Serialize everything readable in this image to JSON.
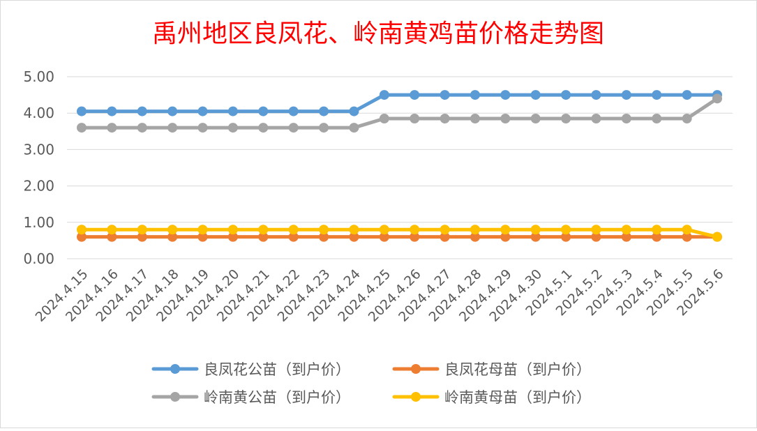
{
  "chart_data": {
    "type": "line",
    "title": "禹州地区良凤花、岭南黄鸡苗价格走势图",
    "categories": [
      "2024.4.15",
      "2024.4.16",
      "2024.4.17",
      "2024.4.18",
      "2024.4.19",
      "2024.4.20",
      "2024.4.21",
      "2024.4.22",
      "2024.4.23",
      "2024.4.24",
      "2024.4.25",
      "2024.4.26",
      "2024.4.27",
      "2024.4.28",
      "2024.4.29",
      "2024.4.30",
      "2024.5.1",
      "2024.5.2",
      "2024.5.3",
      "2024.5.4",
      "2024.5.5",
      "2024.5.6"
    ],
    "yticks": [
      "0.00",
      "1.00",
      "2.00",
      "3.00",
      "4.00",
      "5.00"
    ],
    "ylim": [
      0,
      5
    ],
    "grid": true,
    "legend_position": "bottom",
    "series": [
      {
        "name": "良凤花公苗（到户价）",
        "color": "#5B9BD5",
        "values": [
          4.05,
          4.05,
          4.05,
          4.05,
          4.05,
          4.05,
          4.05,
          4.05,
          4.05,
          4.05,
          4.5,
          4.5,
          4.5,
          4.5,
          4.5,
          4.5,
          4.5,
          4.5,
          4.5,
          4.5,
          4.5,
          4.5
        ]
      },
      {
        "name": "良凤花母苗（到户价）",
        "color": "#ED7D31",
        "values": [
          0.6,
          0.6,
          0.6,
          0.6,
          0.6,
          0.6,
          0.6,
          0.6,
          0.6,
          0.6,
          0.6,
          0.6,
          0.6,
          0.6,
          0.6,
          0.6,
          0.6,
          0.6,
          0.6,
          0.6,
          0.6,
          0.6
        ]
      },
      {
        "name": "岭南黄公苗（到户价）",
        "color": "#A5A5A5",
        "values": [
          3.6,
          3.6,
          3.6,
          3.6,
          3.6,
          3.6,
          3.6,
          3.6,
          3.6,
          3.6,
          3.85,
          3.85,
          3.85,
          3.85,
          3.85,
          3.85,
          3.85,
          3.85,
          3.85,
          3.85,
          3.85,
          4.4
        ]
      },
      {
        "name": "岭南黄母苗（到户价）",
        "color": "#FFC000",
        "values": [
          0.8,
          0.8,
          0.8,
          0.8,
          0.8,
          0.8,
          0.8,
          0.8,
          0.8,
          0.8,
          0.8,
          0.8,
          0.8,
          0.8,
          0.8,
          0.8,
          0.8,
          0.8,
          0.8,
          0.8,
          0.8,
          0.6
        ]
      }
    ]
  },
  "colors": {
    "title": "#FF0000",
    "grid": "#D9D9D9",
    "axis_text": "#595959"
  }
}
